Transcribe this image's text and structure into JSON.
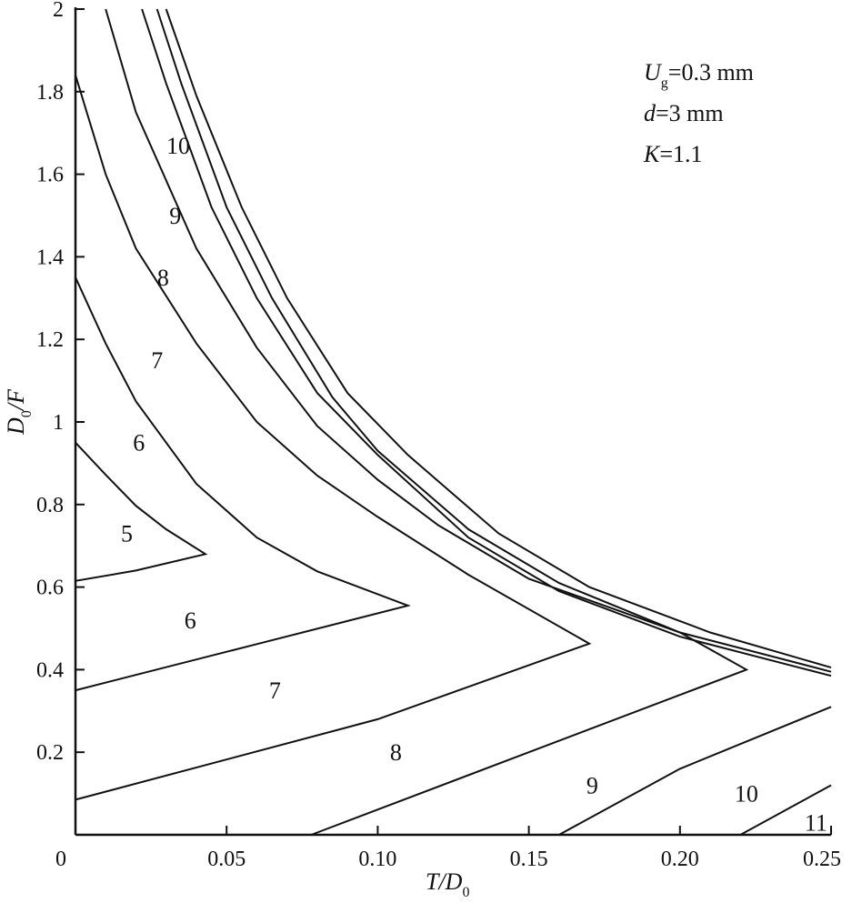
{
  "chart_data": {
    "type": "line",
    "xlabel": {
      "main": "T/D",
      "sub": "0"
    },
    "ylabel": {
      "main": "D",
      "sub": "0",
      "rest": "/F"
    },
    "xlim": [
      0,
      0.25
    ],
    "ylim": [
      0,
      2
    ],
    "xticks": [
      {
        "v": 0,
        "label": "0"
      },
      {
        "v": 0.05,
        "label": "0.05"
      },
      {
        "v": 0.1,
        "label": "0.10"
      },
      {
        "v": 0.15,
        "label": "0.15"
      },
      {
        "v": 0.2,
        "label": "0.20"
      },
      {
        "v": 0.25,
        "label": "0.25"
      }
    ],
    "yticks": [
      {
        "v": 0.2,
        "label": "0.2"
      },
      {
        "v": 0.4,
        "label": "0.4"
      },
      {
        "v": 0.6,
        "label": "0.6"
      },
      {
        "v": 0.8,
        "label": "0.8"
      },
      {
        "v": 1.0,
        "label": "1"
      },
      {
        "v": 1.2,
        "label": "1.2"
      },
      {
        "v": 1.4,
        "label": "1.4"
      },
      {
        "v": 1.6,
        "label": "1.6"
      },
      {
        "v": 1.8,
        "label": "1.8"
      },
      {
        "v": 2.0,
        "label": "2"
      }
    ],
    "annotations": [
      {
        "main": "U",
        "sub": "g",
        "rest": "=0.3 mm"
      },
      {
        "main": "d",
        "sub": "",
        "rest": "=3 mm"
      },
      {
        "main": "K",
        "sub": "",
        "rest": "=1.1"
      }
    ],
    "contours": [
      {
        "name": "5-6",
        "points": [
          [
            0,
            0.95
          ],
          [
            0.01,
            0.872
          ],
          [
            0.02,
            0.797
          ],
          [
            0.03,
            0.74
          ],
          [
            0.043,
            0.68
          ],
          [
            0.02,
            0.64
          ],
          [
            0,
            0.615
          ]
        ]
      },
      {
        "name": "6-7",
        "points": [
          [
            0,
            1.35
          ],
          [
            0.01,
            1.19
          ],
          [
            0.02,
            1.05
          ],
          [
            0.04,
            0.85
          ],
          [
            0.06,
            0.72
          ],
          [
            0.08,
            0.638
          ],
          [
            0.11,
            0.555
          ],
          [
            0.06,
            0.462
          ],
          [
            0,
            0.35
          ]
        ]
      },
      {
        "name": "7-8",
        "points": [
          [
            0,
            1.84
          ],
          [
            0.01,
            1.6
          ],
          [
            0.02,
            1.42
          ],
          [
            0.04,
            1.19
          ],
          [
            0.06,
            1.0
          ],
          [
            0.08,
            0.87
          ],
          [
            0.1,
            0.77
          ],
          [
            0.13,
            0.63
          ],
          [
            0.17,
            0.463
          ],
          [
            0.1,
            0.28
          ],
          [
            0,
            0.085
          ]
        ]
      },
      {
        "name": "8-9",
        "points": [
          [
            0.01,
            2.0
          ],
          [
            0.02,
            1.75
          ],
          [
            0.04,
            1.42
          ],
          [
            0.06,
            1.18
          ],
          [
            0.08,
            0.99
          ],
          [
            0.1,
            0.86
          ],
          [
            0.12,
            0.75
          ],
          [
            0.15,
            0.62
          ],
          [
            0.2,
            0.49
          ],
          [
            0.222,
            0.4
          ],
          [
            0.15,
            0.2
          ],
          [
            0.078,
            0.0
          ]
        ]
      },
      {
        "name": "9-10",
        "points": [
          [
            0.022,
            2.0
          ],
          [
            0.03,
            1.82
          ],
          [
            0.045,
            1.52
          ],
          [
            0.06,
            1.3
          ],
          [
            0.08,
            1.07
          ],
          [
            0.1,
            0.92
          ],
          [
            0.13,
            0.72
          ],
          [
            0.16,
            0.59
          ],
          [
            0.2,
            0.48
          ],
          [
            0.25,
            0.385
          ]
        ]
      },
      {
        "name": "10",
        "points": [
          [
            0.027,
            2.0
          ],
          [
            0.035,
            1.82
          ],
          [
            0.05,
            1.52
          ],
          [
            0.065,
            1.3
          ],
          [
            0.085,
            1.06
          ],
          [
            0.1,
            0.93
          ],
          [
            0.13,
            0.74
          ],
          [
            0.16,
            0.61
          ],
          [
            0.2,
            0.49
          ],
          [
            0.25,
            0.395
          ]
        ]
      },
      {
        "name": "10b",
        "points": [
          [
            0.03,
            2.0
          ],
          [
            0.04,
            1.79
          ],
          [
            0.055,
            1.52
          ],
          [
            0.07,
            1.3
          ],
          [
            0.09,
            1.07
          ],
          [
            0.11,
            0.92
          ],
          [
            0.14,
            0.73
          ],
          [
            0.17,
            0.6
          ],
          [
            0.21,
            0.49
          ],
          [
            0.25,
            0.405
          ]
        ]
      },
      {
        "name": "9-10 lower",
        "points": [
          [
            0.16,
            0.0
          ],
          [
            0.2,
            0.16
          ],
          [
            0.25,
            0.31
          ]
        ]
      },
      {
        "name": "10-11",
        "points": [
          [
            0.22,
            0.0
          ],
          [
            0.25,
            0.12
          ]
        ]
      }
    ],
    "region_labels": [
      {
        "text": "5",
        "x": 0.017,
        "y": 0.73
      },
      {
        "text": "6",
        "x": 0.021,
        "y": 0.95
      },
      {
        "text": "6",
        "x": 0.038,
        "y": 0.52
      },
      {
        "text": "7",
        "x": 0.027,
        "y": 1.15
      },
      {
        "text": "7",
        "x": 0.066,
        "y": 0.35
      },
      {
        "text": "8",
        "x": 0.029,
        "y": 1.35
      },
      {
        "text": "8",
        "x": 0.106,
        "y": 0.2
      },
      {
        "text": "9",
        "x": 0.033,
        "y": 1.5
      },
      {
        "text": "9",
        "x": 0.171,
        "y": 0.12
      },
      {
        "text": "10",
        "x": 0.034,
        "y": 1.67
      },
      {
        "text": "10",
        "x": 0.222,
        "y": 0.1
      },
      {
        "text": "11",
        "x": 0.245,
        "y": 0.03
      }
    ]
  }
}
